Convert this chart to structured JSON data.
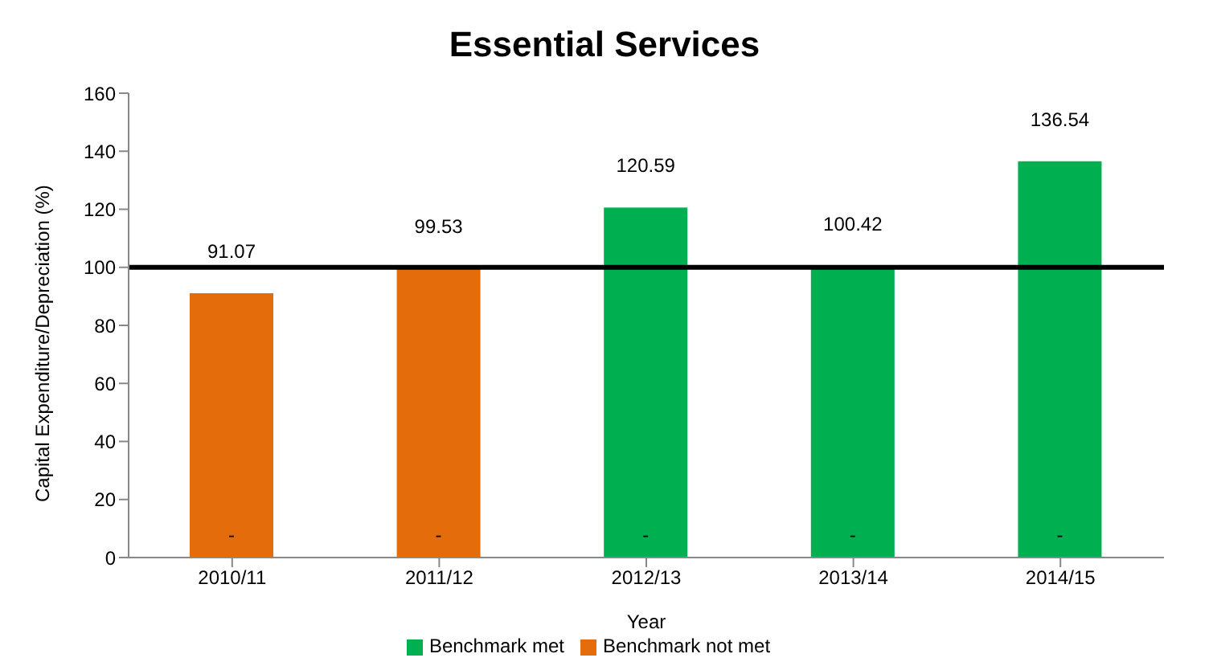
{
  "chart_data": {
    "type": "bar",
    "title": "Essential Services",
    "xlabel": "Year",
    "ylabel": "Capital Expenditure/Depreciation (%)",
    "categories": [
      "2010/11",
      "2011/12",
      "2012/13",
      "2013/14",
      "2014/15"
    ],
    "series": [
      {
        "name": "Benchmark met",
        "color": "#00b050",
        "values": [
          0,
          0,
          120.59,
          100.42,
          136.54
        ],
        "value_labels": [
          "-",
          "-",
          "120.59",
          "100.42",
          "136.54"
        ]
      },
      {
        "name": "Benchmark not met",
        "color": "#e46c0a",
        "values": [
          91.07,
          99.53,
          0,
          0,
          0
        ],
        "value_labels": [
          "91.07",
          "99.53",
          "-",
          "-",
          "-"
        ]
      }
    ],
    "ylim": [
      0,
      160
    ],
    "yticks": [
      0,
      20,
      40,
      60,
      80,
      100,
      120,
      140,
      160
    ],
    "grid": false,
    "legend": "bottom",
    "ref_lines": [
      {
        "axis": "y",
        "value": 100,
        "color": "#000000",
        "line_style": "solid"
      }
    ]
  }
}
